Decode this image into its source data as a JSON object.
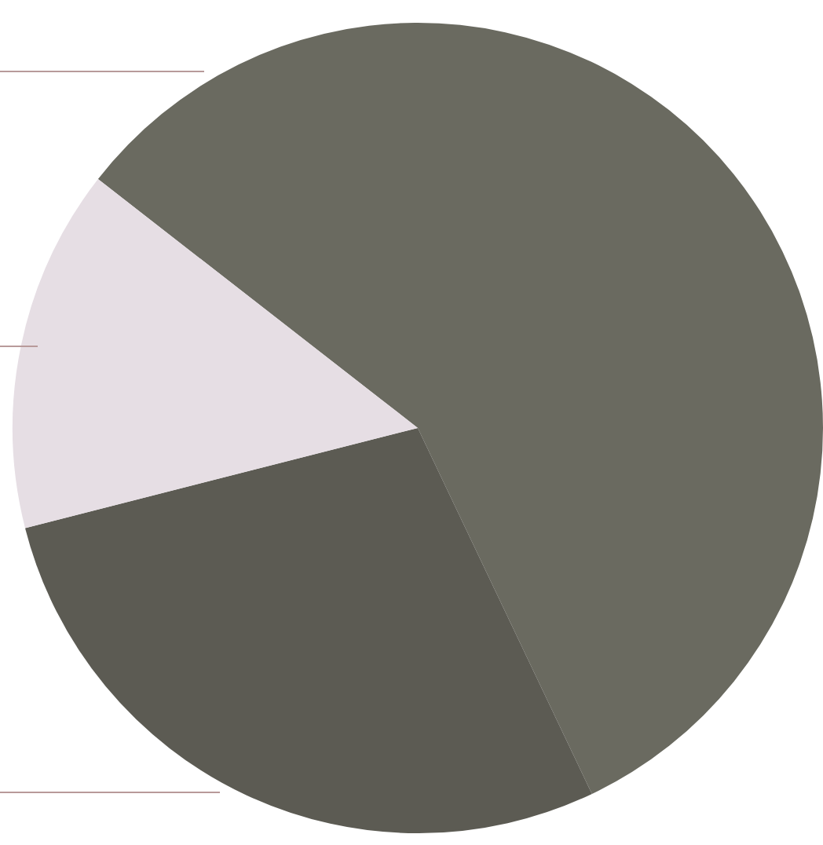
{
  "chart_data": {
    "type": "pie",
    "categories": [
      null,
      null,
      null
    ],
    "values": [
      57.4,
      28.1,
      14.5
    ],
    "colors": [
      "#6a6a60",
      "#5c5b53",
      "#e6dee4"
    ],
    "legend": false
  }
}
